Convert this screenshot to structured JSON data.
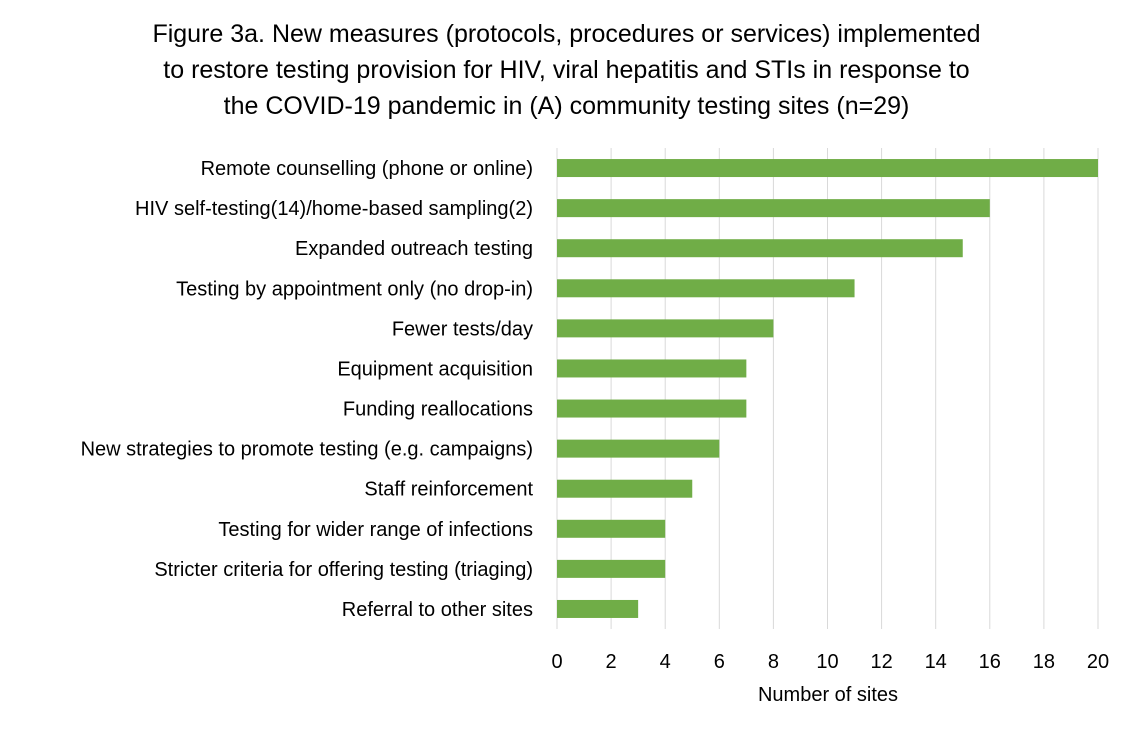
{
  "chart_data": {
    "type": "bar",
    "orientation": "horizontal",
    "title_lines": [
      "Figure 3a. New measures (protocols, procedures or services) implemented",
      "to restore testing provision for HIV, viral hepatitis and STIs in response to",
      "the COVID-19 pandemic in (A) community testing sites (n=29)"
    ],
    "categories": [
      "Remote counselling (phone or online)",
      "HIV self-testing(14)/home-based sampling(2)",
      "Expanded outreach testing",
      "Testing by appointment only (no drop-in)",
      "Fewer tests/day",
      "Equipment acquisition",
      "Funding reallocations",
      "New strategies to promote testing (e.g. campaigns)",
      "Staff reinforcement",
      "Testing for wider range of infections",
      "Stricter criteria for offering testing (triaging)",
      "Referral to other sites"
    ],
    "values": [
      20,
      16,
      15,
      11,
      8,
      7,
      7,
      6,
      5,
      4,
      4,
      3
    ],
    "xlabel": "Number of sites",
    "ylabel": "",
    "xlim": [
      0,
      20
    ],
    "xticks": [
      0,
      2,
      4,
      6,
      8,
      10,
      12,
      14,
      16,
      18,
      20
    ],
    "grid": "vertical",
    "legend": "none",
    "bar_color": "#70ad47",
    "grid_color": "#d9d9d9"
  }
}
